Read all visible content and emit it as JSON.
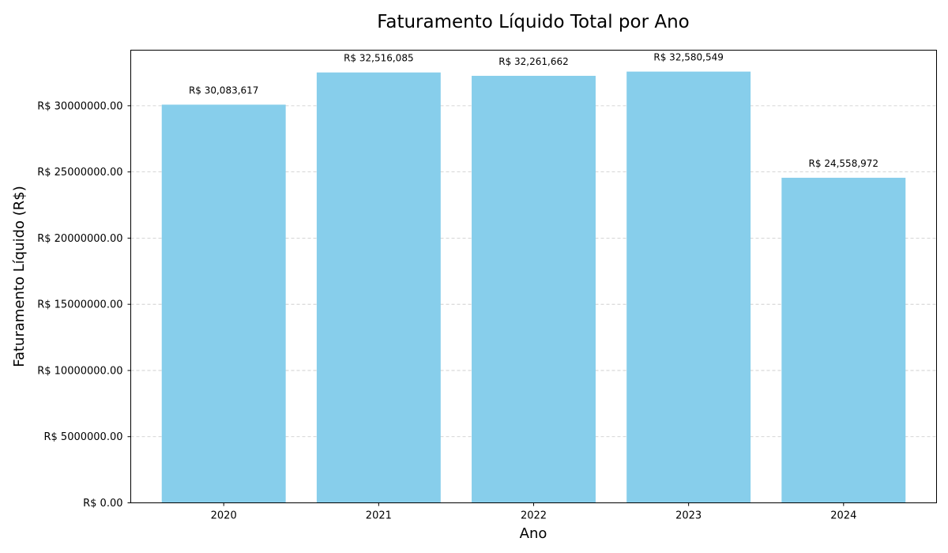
{
  "chart_data": {
    "type": "bar",
    "title": "Faturamento Líquido Total por Ano",
    "xlabel": "Ano",
    "ylabel": "Faturamento Líquido (R$)",
    "categories": [
      "2020",
      "2021",
      "2022",
      "2023",
      "2024"
    ],
    "values": [
      30083617,
      32516085,
      32261662,
      32580549,
      24558972
    ],
    "value_labels": [
      "R$ 30,083,617",
      "R$ 32,516,085",
      "R$ 32,261,662",
      "R$ 32,580,549",
      "R$ 24,558,972"
    ],
    "ylim": [
      0,
      34200000
    ],
    "yticks": [
      0,
      5000000,
      10000000,
      15000000,
      20000000,
      25000000,
      30000000
    ],
    "ytick_labels": [
      "R$ 0.00",
      "R$ 5000000.00",
      "R$ 10000000.00",
      "R$ 15000000.00",
      "R$ 20000000.00",
      "R$ 25000000.00",
      "R$ 30000000.00"
    ],
    "grid": "y-dashed",
    "bar_color": "#87CEEB",
    "grid_color": "#c8c8c8"
  }
}
